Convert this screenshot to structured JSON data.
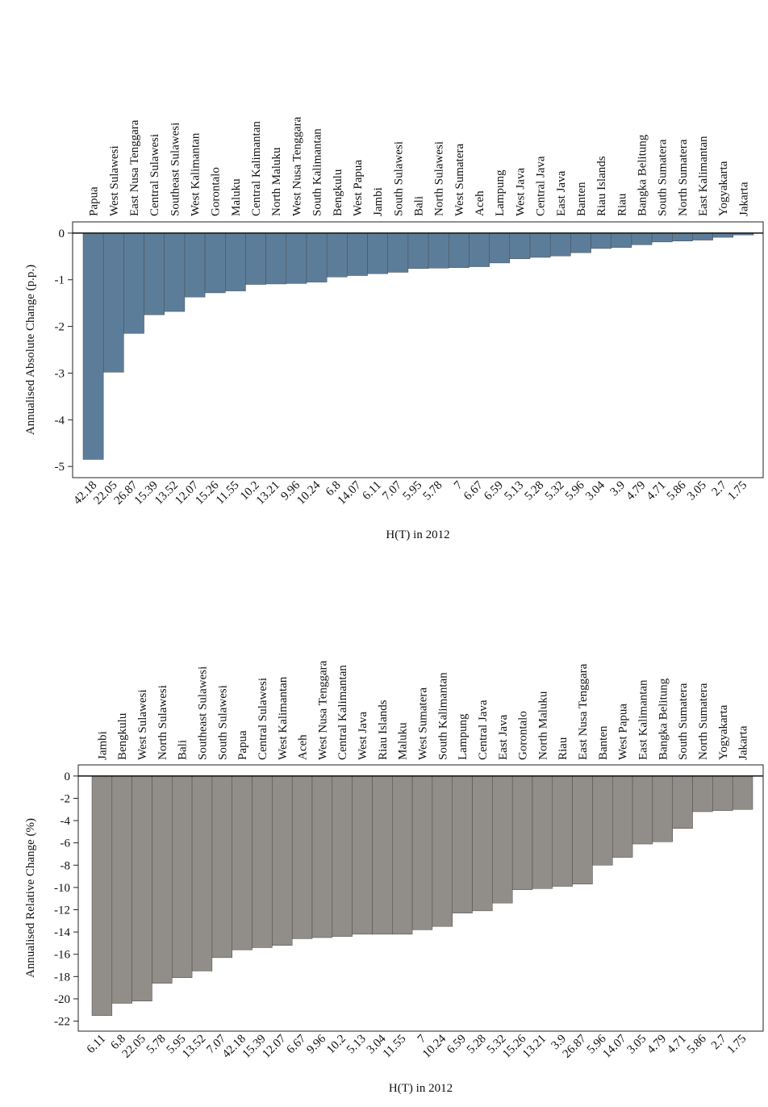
{
  "chart_data": [
    {
      "type": "bar",
      "ylabel": "Annualised Absolute Change (p.p.)",
      "xlabel": "H(T) in 2012",
      "color": "#5c7d9a",
      "categories": [
        "Papua",
        "West Sulawesi",
        "East Nusa Tenggara",
        "Central Sulawesi",
        "Southeast Sulawesi",
        "West Kalimantan",
        "Gorontalo",
        "Maluku",
        "Central Kalimantan",
        "North Maluku",
        "West Nusa Tenggara",
        "South Kalimantan",
        "Bengkulu",
        "West Papua",
        "Jambi",
        "South Sulawesi",
        "Bali",
        "North Sulawesi",
        "West Sumatera",
        "Aceh",
        "Lampung",
        "West Java",
        "Central Java",
        "East Java",
        "Banten",
        "Riau Islands",
        "Riau",
        "Bangka Belitung",
        "South Sumatera",
        "North Sumatera",
        "East Kalimantan",
        "Yogyakarta",
        "Jakarta"
      ],
      "bottom_labels": [
        42.18,
        22.05,
        26.87,
        15.39,
        13.52,
        12.07,
        15.26,
        11.55,
        10.2,
        13.21,
        9.96,
        10.24,
        6.8,
        14.07,
        6.11,
        7.07,
        5.95,
        5.78,
        7,
        6.67,
        6.59,
        5.13,
        5.28,
        5.32,
        5.96,
        3.04,
        3.9,
        4.79,
        4.71,
        5.86,
        3.05,
        2.7,
        1.75
      ],
      "values": [
        -4.85,
        -2.98,
        -2.15,
        -1.75,
        -1.68,
        -1.37,
        -1.28,
        -1.24,
        -1.1,
        -1.09,
        -1.08,
        -1.05,
        -0.94,
        -0.91,
        -0.87,
        -0.84,
        -0.76,
        -0.75,
        -0.74,
        -0.72,
        -0.64,
        -0.55,
        -0.52,
        -0.49,
        -0.42,
        -0.33,
        -0.31,
        -0.25,
        -0.19,
        -0.17,
        -0.15,
        -0.09,
        -0.04
      ],
      "ylim": [
        -5.24,
        0.24
      ],
      "yticks": [
        0,
        -1,
        -2,
        -3,
        -4,
        -5
      ]
    },
    {
      "type": "bar",
      "ylabel": "Annualised Relative Change (%)",
      "xlabel": "H(T) in 2012",
      "color": "#918d88",
      "categories": [
        "Jambi",
        "Bengkulu",
        "West Sulawesi",
        "North Sulawesi",
        "Bali",
        "Southeast Sulawesi",
        "South Sulawesi",
        "Papua",
        "Central Sulawesi",
        "West Kalimantan",
        "Aceh",
        "West Nusa Tenggara",
        "Central Kalimantan",
        "West Java",
        "Riau Islands",
        "Maluku",
        "West Sumatera",
        "South Kalimantan",
        "Lampung",
        "Central Java",
        "East Java",
        "Gorontalo",
        "North Maluku",
        "Riau",
        "East Nusa Tenggara",
        "Banten",
        "West Papua",
        "East Kalimantan",
        "Bangka Belitung",
        "South Sumatera",
        "North Sumatera",
        "Yogyakarta",
        "Jakarta"
      ],
      "bottom_labels": [
        6.11,
        6.8,
        22.05,
        5.78,
        5.95,
        13.52,
        7.07,
        42.18,
        15.39,
        12.07,
        6.67,
        9.96,
        10.2,
        5.13,
        3.04,
        11.55,
        7,
        10.24,
        6.59,
        5.28,
        5.32,
        15.26,
        13.21,
        3.9,
        26.87,
        5.96,
        14.07,
        3.05,
        4.79,
        4.71,
        5.86,
        2.7,
        1.75
      ],
      "values": [
        -21.5,
        -20.4,
        -20.2,
        -18.6,
        -18.1,
        -17.5,
        -16.3,
        -15.6,
        -15.4,
        -15.2,
        -14.6,
        -14.5,
        -14.4,
        -14.2,
        -14.2,
        -14.2,
        -13.8,
        -13.5,
        -12.3,
        -12.1,
        -11.4,
        -10.2,
        -10.1,
        -9.9,
        -9.7,
        -8.0,
        -7.3,
        -6.1,
        -5.9,
        -4.7,
        -3.2,
        -3.1,
        -3.0
      ],
      "ylim": [
        -22.9,
        1.0
      ],
      "yticks": [
        0,
        -2,
        -4,
        -6,
        -8,
        -10,
        -12,
        -14,
        -16,
        -18,
        -20,
        -22
      ]
    }
  ]
}
